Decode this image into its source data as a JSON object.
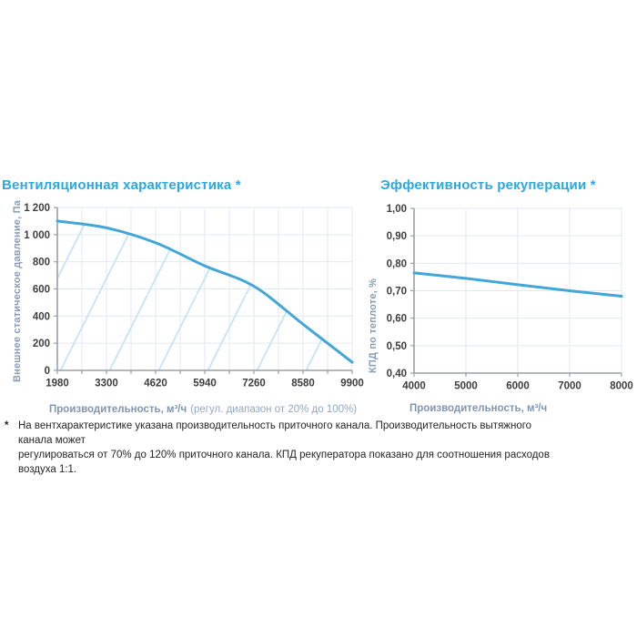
{
  "colors": {
    "title": "#2aa9e0",
    "curve": "#41a6d8",
    "axis": "#9aa0a8",
    "grid": "#e0e9f3",
    "hatch": "#c7e4f3",
    "tick_text": "#3e3e3e",
    "axis_label": "#8095b2"
  },
  "chart_data": [
    {
      "type": "line",
      "title": "Вентиляционная характеристика *",
      "xlabel": "Производительность, м³/ч",
      "xlabel_note": "(регул. диапазон от 20% до 100%)",
      "ylabel": "Внешнее статическое давление, Па",
      "x": [
        1980,
        3300,
        4620,
        5940,
        7260,
        8580,
        9900
      ],
      "y": [
        1100,
        1050,
        940,
        770,
        620,
        340,
        60
      ],
      "xlim": [
        1980,
        9900
      ],
      "ylim": [
        0,
        1200
      ],
      "xticks": [
        1980,
        3300,
        4620,
        5940,
        7260,
        8580,
        9900
      ],
      "xtick_labels": [
        "1980",
        "3300",
        "4620",
        "5940",
        "7260",
        "8580",
        "9900"
      ],
      "yticks": [
        0,
        200,
        400,
        600,
        800,
        1000,
        1200
      ],
      "ytick_labels": [
        "0",
        "200",
        "400",
        "600",
        "800",
        "1 000",
        "1 200"
      ],
      "grid": true,
      "hatched_area": true,
      "legend": "none"
    },
    {
      "type": "line",
      "title": "Эффективность рекуперации *",
      "xlabel": "Производительность, м³/ч",
      "xlabel_note": "",
      "ylabel": "КПД по теплоте, %",
      "x": [
        4000,
        5000,
        6000,
        7000,
        8000
      ],
      "y": [
        0.765,
        0.745,
        0.722,
        0.7,
        0.68
      ],
      "xlim": [
        4000,
        8000
      ],
      "ylim": [
        0.4,
        1.0
      ],
      "xticks": [
        4000,
        5000,
        6000,
        7000,
        8000
      ],
      "xtick_labels": [
        "4000",
        "5000",
        "6000",
        "7000",
        "8000"
      ],
      "yticks": [
        0.4,
        0.5,
        0.6,
        0.7,
        0.8,
        0.9,
        1.0
      ],
      "ytick_labels": [
        "0,40",
        "0,50",
        "0,60",
        "0,70",
        "0,80",
        "0,90",
        "1,00"
      ],
      "grid": true,
      "hatched_area": false,
      "legend": "none"
    }
  ],
  "footnote": {
    "marker": "*",
    "lines": [
      "На вентхарактеристике указана производительность приточного канала. Производительность вытяжного канала может",
      "регулироваться от 70% до 120% приточного канала. КПД рекуператора показано для соотношения расходов воздуха 1:1."
    ]
  }
}
